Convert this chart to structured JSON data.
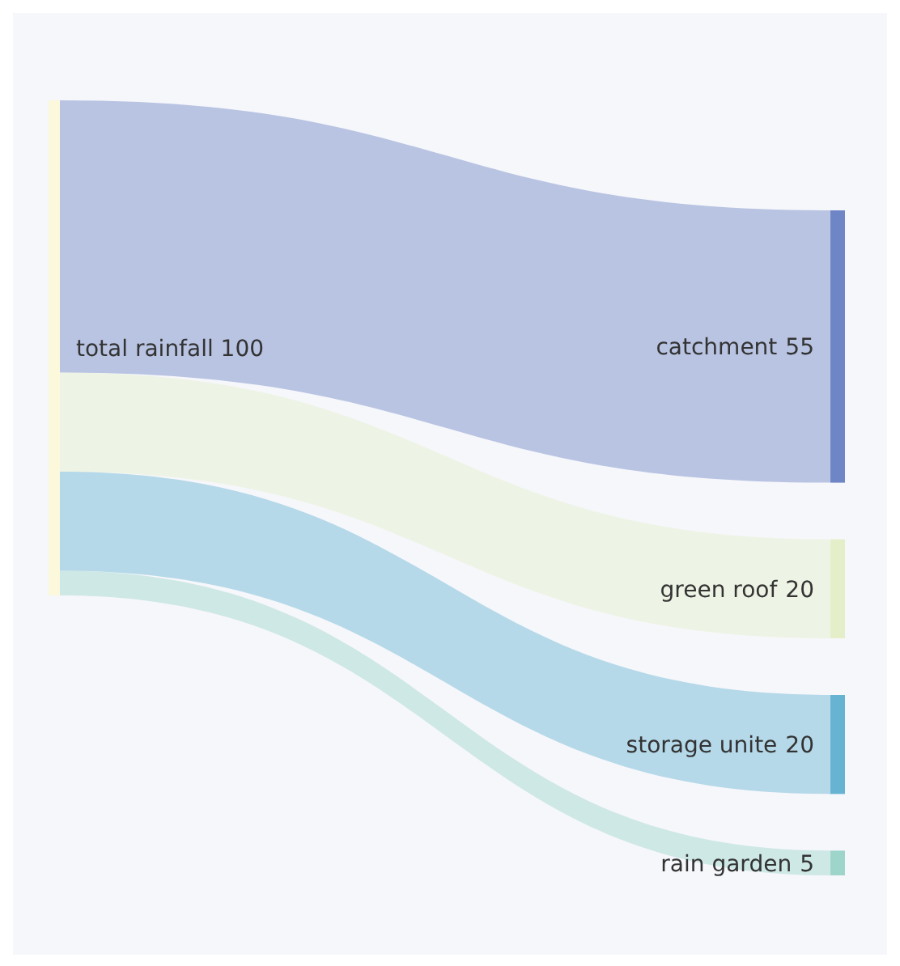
{
  "chart_data": {
    "type": "other",
    "categories": [
      "catchment",
      "green roof",
      "storage unite",
      "rain garden"
    ],
    "series": [
      {
        "name": "total rainfall",
        "values": [
          55,
          20,
          20,
          5
        ]
      }
    ],
    "colors": [
      "#6f86c6",
      "#e4efc9",
      "#67b3d2",
      "#9dd5cb"
    ],
    "totals": [
      "100"
    ],
    "data_labels": true
  }
}
